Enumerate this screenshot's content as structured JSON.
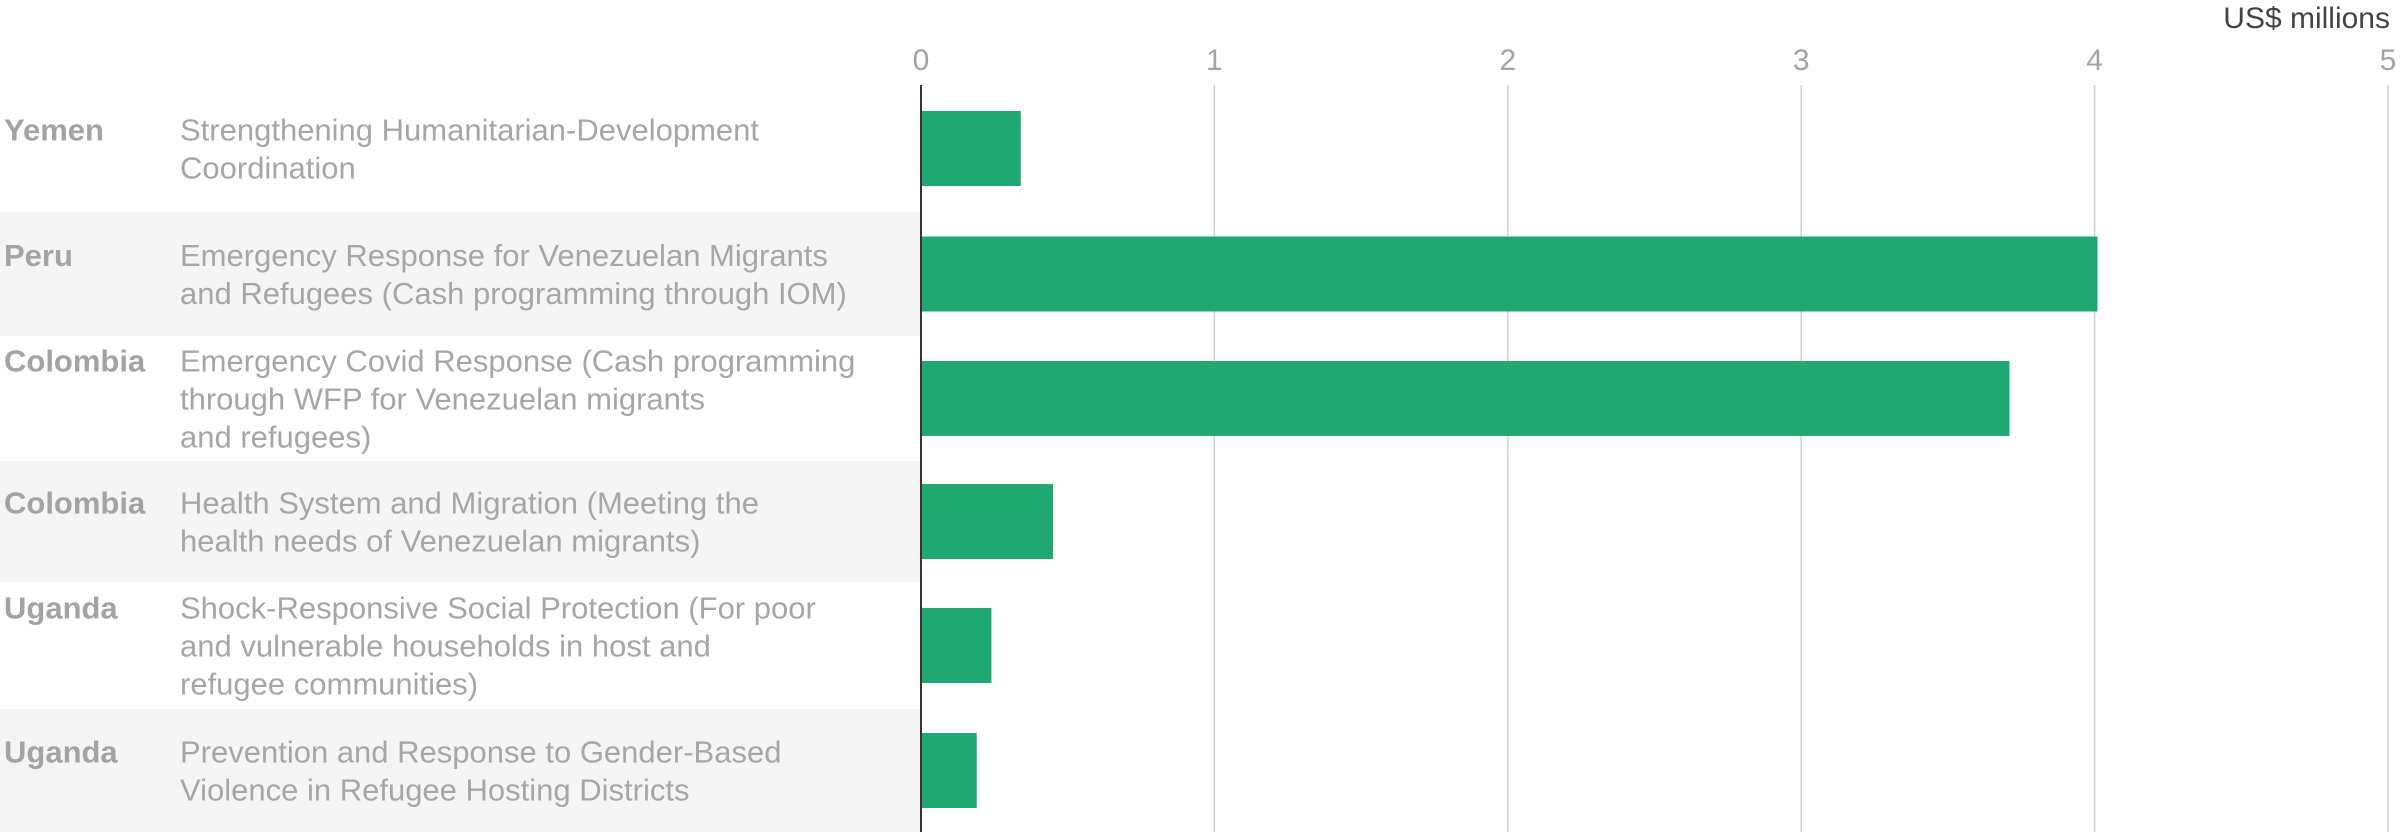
{
  "chart_data": {
    "type": "bar",
    "orientation": "horizontal",
    "unit_label": "US$ millions",
    "xlim": [
      0,
      5
    ],
    "xticks": [
      0,
      1,
      2,
      3,
      4,
      5
    ],
    "grid": true,
    "bar_color": "#20a872",
    "alt_row_color": "#f5f5f5",
    "rows": [
      {
        "country": "Yemen",
        "project": [
          "Strengthening Humanitarian-Development",
          "Coordination"
        ],
        "value": 0.34
      },
      {
        "country": "Peru",
        "project": [
          "Emergency Response for Venezuelan Migrants",
          "and Refugees (Cash programming through IOM)"
        ],
        "value": 4.01
      },
      {
        "country": "Colombia",
        "project": [
          "Emergency Covid Response (Cash programming",
          "through WFP for Venezuelan migrants",
          "and refugees)"
        ],
        "value": 3.71
      },
      {
        "country": "Colombia",
        "project": [
          "Health System and Migration (Meeting the",
          "health needs of Venezuelan migrants)"
        ],
        "value": 0.45
      },
      {
        "country": "Uganda",
        "project": [
          "Shock-Responsive Social Protection (For poor",
          "and vulnerable households in host and",
          "refugee communities)"
        ],
        "value": 0.24
      },
      {
        "country": "Uganda",
        "project": [
          "Prevention and Response to Gender-Based",
          "Violence in Refugee Hosting Districts"
        ],
        "value": 0.19
      }
    ]
  }
}
